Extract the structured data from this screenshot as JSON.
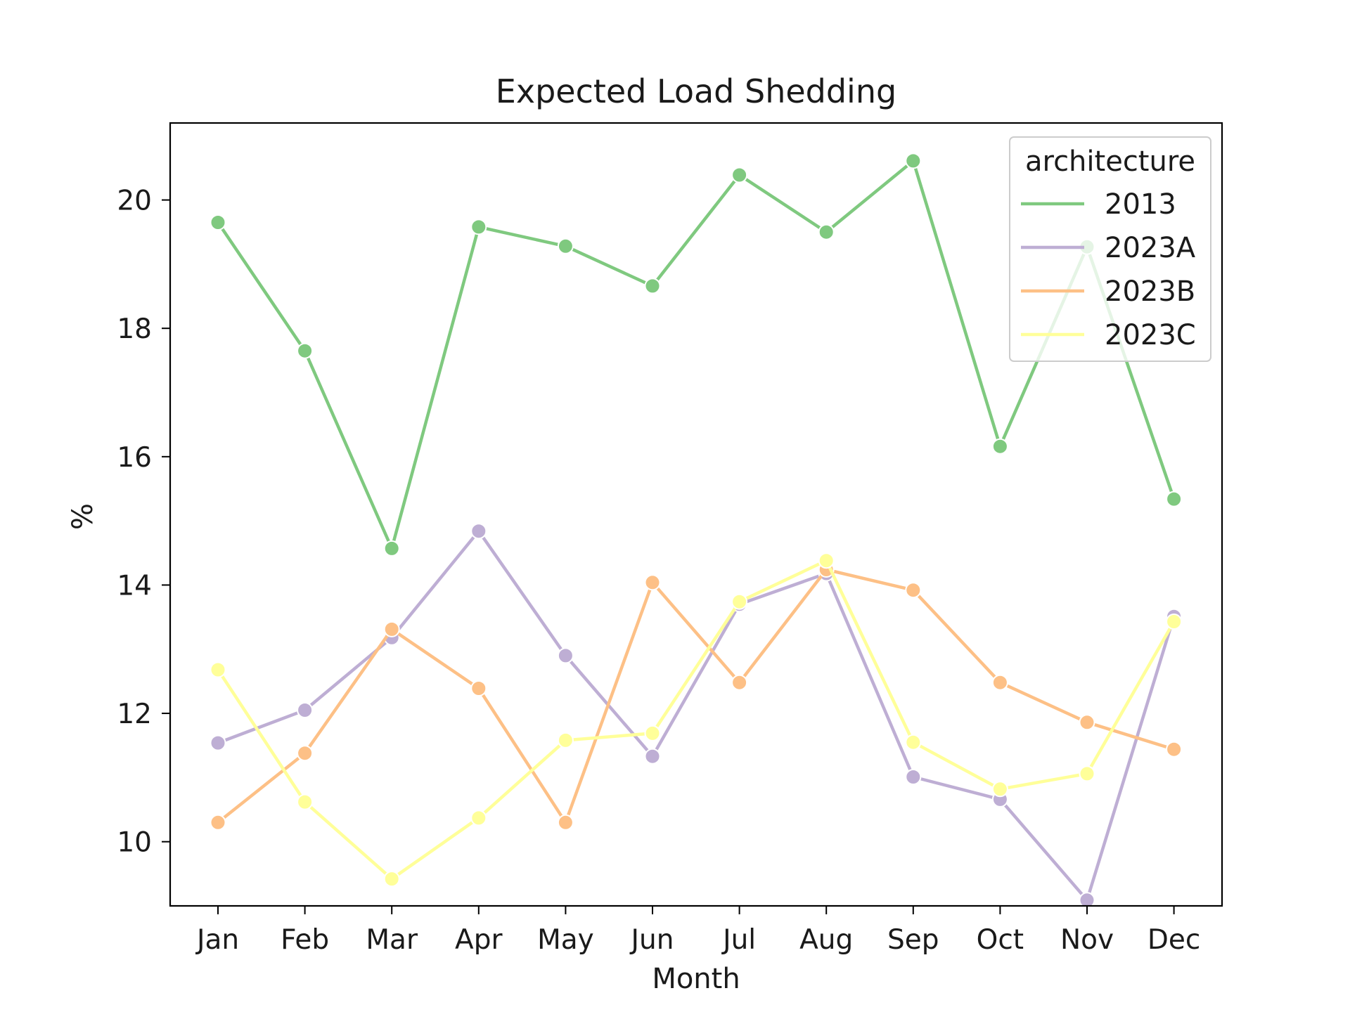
{
  "chart_data": {
    "type": "line",
    "title": "Expected Load Shedding",
    "xlabel": "Month",
    "ylabel": "%",
    "categories": [
      "Jan",
      "Feb",
      "Mar",
      "Apr",
      "May",
      "Jun",
      "Jul",
      "Aug",
      "Sep",
      "Oct",
      "Nov",
      "Dec"
    ],
    "ylim": [
      9.0,
      21.2
    ],
    "yticks": [
      10,
      12,
      14,
      16,
      18,
      20
    ],
    "grid": false,
    "legend": {
      "title": "architecture",
      "placement": "top-right"
    },
    "markers": true,
    "series": [
      {
        "name": "2013",
        "color": "#7fc97f",
        "values": [
          19.65,
          17.65,
          14.57,
          19.58,
          19.28,
          18.66,
          20.39,
          19.5,
          20.61,
          16.16,
          19.27,
          15.34
        ]
      },
      {
        "name": "2023A",
        "color": "#beaed4",
        "values": [
          11.54,
          12.05,
          13.18,
          14.84,
          12.9,
          11.33,
          13.7,
          14.18,
          11.01,
          10.66,
          9.09,
          13.51
        ]
      },
      {
        "name": "2023B",
        "color": "#fdc086",
        "values": [
          10.3,
          11.38,
          13.31,
          12.39,
          10.3,
          14.04,
          12.48,
          14.24,
          13.92,
          12.48,
          11.86,
          11.44
        ]
      },
      {
        "name": "2023C",
        "color": "#ffff99",
        "values": [
          12.68,
          10.62,
          9.42,
          10.37,
          11.58,
          11.69,
          13.74,
          14.38,
          11.55,
          10.82,
          11.06,
          13.43
        ]
      }
    ]
  }
}
